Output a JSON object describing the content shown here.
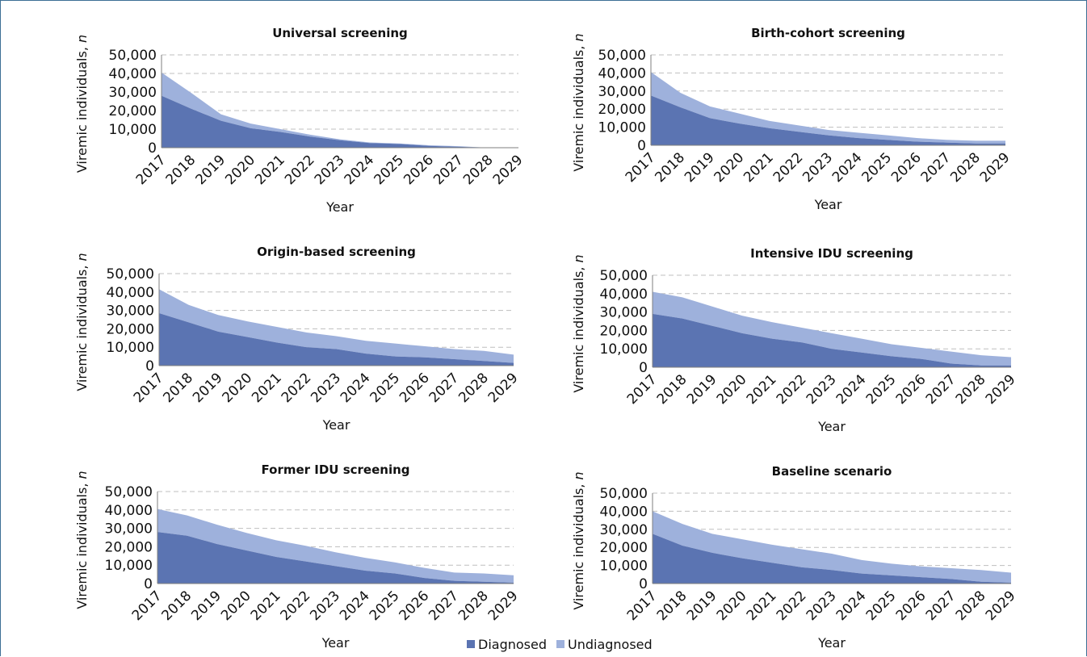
{
  "colors": {
    "diagnosed": "#5b74b2",
    "undiagnosed": "#9eb1dc",
    "grid": "#bfbfbf",
    "axis": "#7f7f7f",
    "frame": "#3d6f95"
  },
  "legend": {
    "diagnosed_label": "Diagnosed",
    "undiagnosed_label": "Undiagnosed"
  },
  "chart_data": [
    {
      "type": "area",
      "title": "Universal screening",
      "xlabel": "Year",
      "ylabel": "Viremic individuals, n",
      "x": [
        2017,
        2018,
        2019,
        2020,
        2021,
        2022,
        2023,
        2024,
        2025,
        2026,
        2027,
        2028,
        2029
      ],
      "yticks": [
        "50,000",
        "40,000",
        "30,000",
        "20,000",
        "10,000",
        "0"
      ],
      "ylim": [
        0,
        50000
      ],
      "grid": true,
      "legend": "bottom-center (shared)",
      "series": [
        {
          "name": "Diagnosed",
          "values": [
            28000,
            21000,
            14500,
            10500,
            8500,
            6000,
            4000,
            2500,
            2000,
            1000,
            500,
            0,
            0
          ]
        },
        {
          "name": "Undiagnosed",
          "values": [
            12500,
            8500,
            3500,
            2500,
            1500,
            1000,
            500,
            300,
            300,
            300,
            300,
            0,
            0
          ]
        }
      ]
    },
    {
      "type": "area",
      "title": "Birth-cohort screening",
      "xlabel": "Year",
      "ylabel": "Viremic individuals, n",
      "x": [
        2017,
        2018,
        2019,
        2020,
        2021,
        2022,
        2023,
        2024,
        2025,
        2026,
        2027,
        2028,
        2029
      ],
      "yticks": [
        "50,000",
        "40,000",
        "30,000",
        "20,000",
        "10,000",
        "0"
      ],
      "ylim": [
        0,
        50000
      ],
      "grid": true,
      "legend": "bottom-center (shared)",
      "series": [
        {
          "name": "Diagnosed",
          "values": [
            27500,
            21000,
            15000,
            12000,
            9500,
            7500,
            5500,
            4000,
            3000,
            2000,
            1500,
            1000,
            1000
          ]
        },
        {
          "name": "Undiagnosed",
          "values": [
            13000,
            8000,
            6500,
            5500,
            4000,
            3500,
            3000,
            3000,
            2500,
            2000,
            1500,
            1500,
            1500
          ]
        }
      ]
    },
    {
      "type": "area",
      "title": "Origin-based screening",
      "xlabel": "Year",
      "ylabel": "Viremic individuals, n",
      "x": [
        2017,
        2018,
        2019,
        2020,
        2021,
        2022,
        2023,
        2024,
        2025,
        2026,
        2027,
        2028,
        2029
      ],
      "yticks": [
        "50,000",
        "40,000",
        "30,000",
        "20,000",
        "10,000",
        "0"
      ],
      "ylim": [
        0,
        50000
      ],
      "grid": true,
      "legend": "bottom-center (shared)",
      "series": [
        {
          "name": "Diagnosed",
          "values": [
            28500,
            23500,
            18500,
            15500,
            12500,
            10000,
            9000,
            6500,
            5000,
            4500,
            3500,
            2500,
            1500
          ]
        },
        {
          "name": "Undiagnosed",
          "values": [
            13000,
            9500,
            9000,
            8500,
            8500,
            8000,
            7000,
            7000,
            7000,
            6000,
            5500,
            5500,
            4500
          ]
        }
      ]
    },
    {
      "type": "area",
      "title": "Intensive IDU screening",
      "xlabel": "Year",
      "ylabel": "Viremic individuals, n",
      "x": [
        2017,
        2018,
        2019,
        2020,
        2021,
        2022,
        2023,
        2024,
        2025,
        2026,
        2027,
        2028,
        2029
      ],
      "yticks": [
        "50,000",
        "40,000",
        "30,000",
        "20,000",
        "10,000",
        "0"
      ],
      "ylim": [
        0,
        50000
      ],
      "grid": true,
      "legend": "bottom-center (shared)",
      "series": [
        {
          "name": "Diagnosed",
          "values": [
            29000,
            26500,
            22500,
            18500,
            15500,
            13500,
            10000,
            8000,
            6000,
            4500,
            2000,
            1000,
            1000
          ]
        },
        {
          "name": "Undiagnosed",
          "values": [
            12000,
            11500,
            10500,
            9500,
            9000,
            8000,
            8500,
            7500,
            6500,
            6000,
            6500,
            5500,
            4500
          ]
        }
      ]
    },
    {
      "type": "area",
      "title": "Former IDU screening",
      "xlabel": "Year",
      "ylabel": "Viremic individuals, n",
      "x": [
        2017,
        2018,
        2019,
        2020,
        2021,
        2022,
        2023,
        2024,
        2025,
        2026,
        2027,
        2028,
        2029
      ],
      "yticks": [
        "50,000",
        "40,000",
        "30,000",
        "20,000",
        "10,000",
        "0"
      ],
      "ylim": [
        0,
        50000
      ],
      "grid": true,
      "legend": "bottom-center (shared)",
      "series": [
        {
          "name": "Diagnosed",
          "values": [
            28000,
            26000,
            21500,
            18000,
            14500,
            12000,
            9500,
            7000,
            5500,
            3000,
            1500,
            1000,
            500
          ]
        },
        {
          "name": "Undiagnosed",
          "values": [
            12500,
            11000,
            10500,
            9500,
            9000,
            8500,
            7500,
            7000,
            6000,
            5500,
            4500,
            4500,
            4000
          ]
        }
      ]
    },
    {
      "type": "area",
      "title": "Baseline scenario",
      "xlabel": "Year",
      "ylabel": "Viremic individuals, n",
      "x": [
        2017,
        2018,
        2019,
        2020,
        2021,
        2022,
        2023,
        2024,
        2025,
        2026,
        2027,
        2028,
        2029
      ],
      "yticks": [
        "50,000",
        "40,000",
        "30,000",
        "20,000",
        "10,000",
        "0"
      ],
      "ylim": [
        0,
        50000
      ],
      "grid": true,
      "legend": "bottom-center (shared)",
      "series": [
        {
          "name": "Diagnosed",
          "values": [
            27500,
            21000,
            17000,
            14000,
            11500,
            9000,
            7500,
            5500,
            4500,
            3500,
            2500,
            1000,
            500
          ]
        },
        {
          "name": "Undiagnosed",
          "values": [
            12500,
            12000,
            10500,
            10500,
            10000,
            10000,
            9000,
            7500,
            6500,
            6000,
            6000,
            6500,
            5500
          ]
        }
      ]
    }
  ]
}
